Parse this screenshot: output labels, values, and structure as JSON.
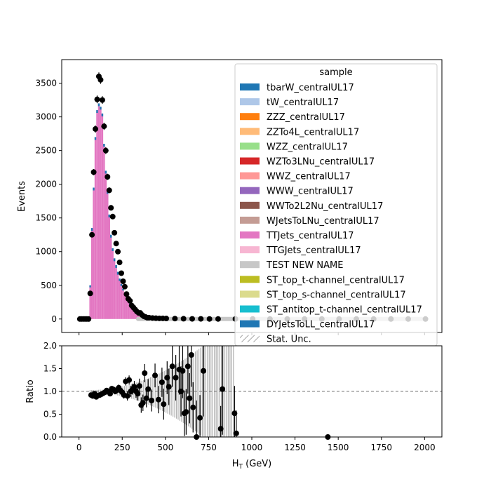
{
  "chart_data": [
    {
      "type": "bar",
      "panel": "main",
      "histtype": "stacked step-filled histogram with data overlay",
      "xlabel": "",
      "ylabel": "Events",
      "xlim": [
        -100,
        2100
      ],
      "ylim": [
        -200,
        3850
      ],
      "yticks": [
        0,
        500,
        1000,
        1500,
        2000,
        2500,
        3000,
        3500
      ],
      "xticks": [
        0,
        250,
        500,
        750,
        1000,
        1250,
        1500,
        1750,
        2000
      ],
      "bin_width": 10,
      "legend": {
        "placement": "top-right",
        "title": "sample",
        "entries": [
          {
            "label": "tbarW_centralUL17",
            "color": "#1f77b4"
          },
          {
            "label": "tW_centralUL17",
            "color": "#aec7e8"
          },
          {
            "label": "ZZZ_centralUL17",
            "color": "#ff7f0e"
          },
          {
            "label": "ZZTo4L_centralUL17",
            "color": "#ffbb78"
          },
          {
            "label": "WZZ_centralUL17",
            "color": "#98df8a"
          },
          {
            "label": "WZTo3LNu_centralUL17",
            "color": "#d62728"
          },
          {
            "label": "WWZ_centralUL17",
            "color": "#ff9896"
          },
          {
            "label": "WWW_centralUL17",
            "color": "#9467bd"
          },
          {
            "label": "WWTo2L2Nu_centralUL17",
            "color": "#8c564b"
          },
          {
            "label": "WJetsToLNu_centralUL17",
            "color": "#c49c94"
          },
          {
            "label": "TTJets_centralUL17",
            "color": "#e377c2"
          },
          {
            "label": "TTGJets_centralUL17",
            "color": "#f7b6d2"
          },
          {
            "label": "TEST NEW NAME",
            "color": "#c7c7c7"
          },
          {
            "label": "ST_top_t-channel_centralUL17",
            "color": "#bcbd22"
          },
          {
            "label": "ST_top_s-channel_centralUL17",
            "color": "#dbdb8d"
          },
          {
            "label": "ST_antitop_t-channel_centralUL17",
            "color": "#17becf"
          },
          {
            "label": "DYJetsToLL_centralUL17",
            "color": "#1f77b4"
          },
          {
            "label": "Stat. Unc.",
            "color": "hatch"
          }
        ]
      },
      "mc_total": {
        "x": [
          60,
          70,
          80,
          90,
          100,
          110,
          120,
          130,
          140,
          150,
          160,
          170,
          180,
          190,
          200,
          210,
          220,
          230,
          240,
          250,
          260,
          270,
          280,
          290,
          300,
          310,
          320,
          330,
          340,
          350,
          360,
          370,
          380,
          390,
          400,
          420,
          440,
          460,
          480,
          500,
          550,
          600,
          650,
          700,
          800,
          900,
          1000,
          1500,
          2000
        ],
        "values": [
          500,
          1350,
          1950,
          2700,
          3100,
          3200,
          3150,
          3050,
          2600,
          2200,
          1900,
          1550,
          1250,
          1050,
          900,
          800,
          700,
          600,
          520,
          450,
          380,
          320,
          270,
          230,
          190,
          160,
          130,
          110,
          95,
          80,
          70,
          60,
          50,
          42,
          35,
          25,
          18,
          12,
          9,
          7,
          4,
          3,
          2,
          1,
          1,
          0,
          0,
          0,
          0
        ]
      },
      "data": {
        "x": [
          0,
          10,
          20,
          30,
          40,
          50,
          60,
          70,
          80,
          90,
          100,
          110,
          120,
          130,
          140,
          150,
          160,
          170,
          180,
          190,
          200,
          210,
          220,
          230,
          240,
          250,
          260,
          270,
          280,
          290,
          300,
          310,
          320,
          330,
          340,
          350,
          360,
          370,
          380,
          390,
          400,
          420,
          440,
          460,
          480,
          500,
          550,
          600,
          650,
          700,
          750,
          800,
          900,
          1000,
          1100,
          1200,
          1300,
          1400,
          1500,
          1600,
          1700,
          1800,
          1900,
          2000
        ],
        "y": [
          0,
          0,
          0,
          0,
          0,
          0,
          380,
          1250,
          2180,
          2820,
          3260,
          3600,
          3550,
          3250,
          2860,
          2500,
          2110,
          1910,
          1650,
          1520,
          1280,
          1120,
          1000,
          840,
          680,
          560,
          480,
          370,
          300,
          270,
          200,
          170,
          140,
          110,
          90,
          90,
          60,
          40,
          30,
          20,
          20,
          15,
          12,
          10,
          10,
          8,
          6,
          4,
          2,
          2,
          1,
          1,
          1,
          1,
          0,
          0,
          0,
          0,
          0,
          0,
          0,
          0,
          0,
          0
        ]
      }
    },
    {
      "type": "scatter",
      "panel": "ratio",
      "xlabel": "H$_T$ (GeV)",
      "xlabel_display": "H",
      "xlabel_sub": "T",
      "xlabel_unit": " (GeV)",
      "ylabel": "Ratio",
      "xlim": [
        -100,
        2100
      ],
      "ylim": [
        0,
        2
      ],
      "yticks": [
        "0.0",
        "0.5",
        "1.0",
        "1.5",
        "2.0"
      ],
      "xticks": [
        "0",
        "250",
        "500",
        "750",
        "1000",
        "1250",
        "1500",
        "1750",
        "2000"
      ],
      "reference_line": 1.0,
      "points": [
        {
          "x": 70,
          "y": 0.92,
          "e": 0.05
        },
        {
          "x": 80,
          "y": 0.9,
          "e": 0.04
        },
        {
          "x": 90,
          "y": 0.95,
          "e": 0.04
        },
        {
          "x": 100,
          "y": 0.88,
          "e": 0.03
        },
        {
          "x": 110,
          "y": 0.91,
          "e": 0.03
        },
        {
          "x": 120,
          "y": 0.92,
          "e": 0.03
        },
        {
          "x": 130,
          "y": 0.94,
          "e": 0.03
        },
        {
          "x": 140,
          "y": 0.96,
          "e": 0.03
        },
        {
          "x": 150,
          "y": 0.98,
          "e": 0.04
        },
        {
          "x": 160,
          "y": 1.02,
          "e": 0.04
        },
        {
          "x": 170,
          "y": 1.0,
          "e": 0.04
        },
        {
          "x": 180,
          "y": 0.95,
          "e": 0.05
        },
        {
          "x": 190,
          "y": 1.06,
          "e": 0.05
        },
        {
          "x": 200,
          "y": 1.04,
          "e": 0.05
        },
        {
          "x": 210,
          "y": 1.0,
          "e": 0.06
        },
        {
          "x": 220,
          "y": 1.03,
          "e": 0.06
        },
        {
          "x": 230,
          "y": 1.08,
          "e": 0.07
        },
        {
          "x": 240,
          "y": 1.02,
          "e": 0.07
        },
        {
          "x": 250,
          "y": 0.98,
          "e": 0.08
        },
        {
          "x": 260,
          "y": 0.92,
          "e": 0.08
        },
        {
          "x": 270,
          "y": 1.22,
          "e": 0.09
        },
        {
          "x": 280,
          "y": 0.9,
          "e": 0.1
        },
        {
          "x": 290,
          "y": 1.25,
          "e": 0.1
        },
        {
          "x": 300,
          "y": 1.0,
          "e": 0.12
        },
        {
          "x": 310,
          "y": 1.05,
          "e": 0.12
        },
        {
          "x": 320,
          "y": 1.1,
          "e": 0.13
        },
        {
          "x": 330,
          "y": 1.0,
          "e": 0.14
        },
        {
          "x": 340,
          "y": 0.95,
          "e": 0.15
        },
        {
          "x": 350,
          "y": 1.12,
          "e": 0.16
        },
        {
          "x": 360,
          "y": 0.7,
          "e": 0.17
        },
        {
          "x": 370,
          "y": 0.75,
          "e": 0.18
        },
        {
          "x": 380,
          "y": 1.4,
          "e": 0.2
        },
        {
          "x": 390,
          "y": 0.85,
          "e": 0.2
        },
        {
          "x": 400,
          "y": 1.05,
          "e": 0.22
        },
        {
          "x": 420,
          "y": 0.8,
          "e": 0.24
        },
        {
          "x": 440,
          "y": 1.35,
          "e": 0.26
        },
        {
          "x": 460,
          "y": 0.82,
          "e": 0.3
        },
        {
          "x": 480,
          "y": 1.2,
          "e": 0.32
        },
        {
          "x": 490,
          "y": 0.72,
          "e": 0.34
        },
        {
          "x": 510,
          "y": 1.3,
          "e": 0.36
        },
        {
          "x": 520,
          "y": 1.1,
          "e": 0.4
        },
        {
          "x": 540,
          "y": 1.55,
          "e": 0.45
        },
        {
          "x": 560,
          "y": 1.3,
          "e": 0.5
        },
        {
          "x": 580,
          "y": 1.48,
          "e": 0.55
        },
        {
          "x": 590,
          "y": 1.0,
          "e": 0.55
        },
        {
          "x": 600,
          "y": 1.45,
          "e": 0.6
        },
        {
          "x": 610,
          "y": 0.52,
          "e": 0.5
        },
        {
          "x": 620,
          "y": 0.55,
          "e": 0.5
        },
        {
          "x": 630,
          "y": 1.55,
          "e": 0.6
        },
        {
          "x": 640,
          "y": 0.85,
          "e": 0.55
        },
        {
          "x": 650,
          "y": 1.8,
          "e": 0.7
        },
        {
          "x": 660,
          "y": 0.65,
          "e": 0.55
        },
        {
          "x": 680,
          "y": 0.0,
          "e": 0.8
        },
        {
          "x": 700,
          "y": 0.42,
          "e": 0.5
        },
        {
          "x": 720,
          "y": 1.45,
          "e": 1.0
        },
        {
          "x": 820,
          "y": 0.18,
          "e": 0.5
        },
        {
          "x": 830,
          "y": 1.05,
          "e": 1.0
        },
        {
          "x": 900,
          "y": 0.52,
          "e": 0.6
        },
        {
          "x": 910,
          "y": 0.08,
          "e": 0.5
        },
        {
          "x": 1440,
          "y": 0.0,
          "e": 0.0
        }
      ],
      "mc_unc_band": {
        "x_start": 60,
        "x_end": 900,
        "max_half_width": 1.0
      }
    }
  ]
}
